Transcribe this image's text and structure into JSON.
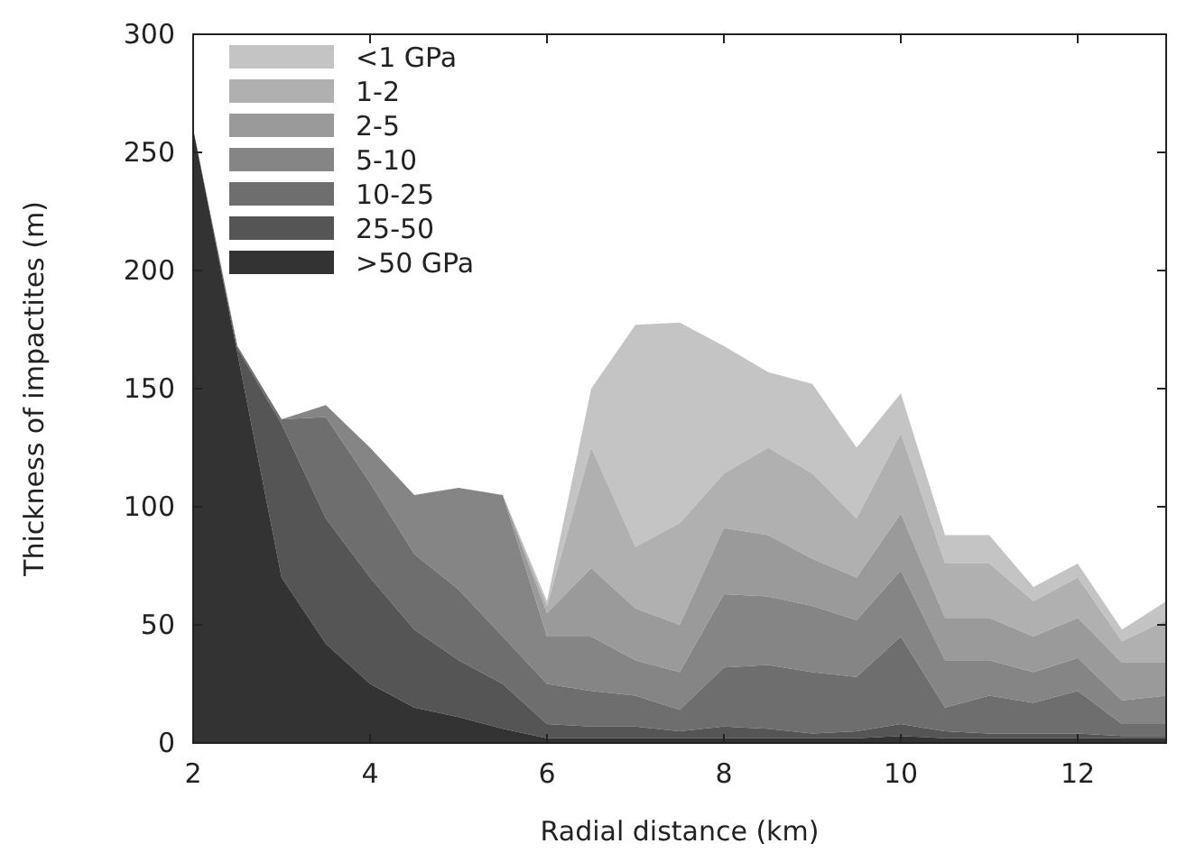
{
  "chart_data": {
    "type": "area",
    "stacked": true,
    "xlabel": "Radial distance (km)",
    "ylabel": "Thickness of impactites (m)",
    "x": [
      2,
      2.5,
      3,
      3.5,
      4,
      4.5,
      5,
      5.5,
      6,
      6.5,
      7,
      7.5,
      8,
      8.5,
      9,
      9.5,
      10,
      10.5,
      11,
      11.5,
      12,
      12.5,
      13
    ],
    "series": [
      {
        "name": ">50 GPa",
        "color": "#333333",
        "values": [
          260,
          165,
          70,
          42,
          25,
          15,
          11,
          6,
          2,
          2,
          2,
          2,
          2,
          2,
          2,
          2,
          3,
          2,
          2,
          2,
          2,
          2,
          2
        ]
      },
      {
        "name": "25-50",
        "color": "#555555",
        "values": [
          0,
          2,
          65,
          53,
          45,
          33,
          24,
          19,
          6,
          5,
          5,
          3,
          5,
          4,
          2,
          3,
          5,
          3,
          2,
          2,
          2,
          1,
          1
        ]
      },
      {
        "name": "10-25",
        "color": "#6e6e6e",
        "values": [
          0,
          1,
          2,
          43,
          40,
          32,
          30,
          20,
          17,
          15,
          13,
          9,
          25,
          27,
          26,
          23,
          37,
          10,
          16,
          13,
          18,
          5,
          5
        ]
      },
      {
        "name": "5-10",
        "color": "#858585",
        "values": [
          0,
          0,
          0,
          5,
          15,
          25,
          43,
          60,
          20,
          23,
          15,
          16,
          31,
          29,
          28,
          24,
          28,
          20,
          15,
          13,
          14,
          10,
          12
        ]
      },
      {
        "name": "2-5",
        "color": "#9a9a9a",
        "values": [
          0,
          0,
          0,
          0,
          0,
          0,
          0,
          0,
          10,
          29,
          22,
          20,
          28,
          26,
          20,
          18,
          24,
          18,
          18,
          15,
          17,
          16,
          14
        ]
      },
      {
        "name": "1-2",
        "color": "#b0b0b0",
        "values": [
          0,
          0,
          0,
          0,
          0,
          0,
          0,
          0,
          3,
          51,
          26,
          43,
          23,
          37,
          36,
          25,
          34,
          23,
          23,
          15,
          17,
          9,
          18
        ]
      },
      {
        "name": "<1 GPa",
        "color": "#c4c4c4",
        "values": [
          0,
          0,
          0,
          0,
          0,
          0,
          0,
          0,
          2,
          25,
          94,
          85,
          54,
          32,
          38,
          30,
          17,
          12,
          12,
          6,
          6,
          5,
          8
        ]
      }
    ],
    "xlim": [
      2,
      13
    ],
    "xticks": [
      2,
      4,
      6,
      8,
      10,
      12
    ],
    "ylim": [
      0,
      300
    ],
    "yticks": [
      0,
      50,
      100,
      150,
      200,
      250,
      300
    ],
    "grid": false,
    "legend": "top left"
  }
}
